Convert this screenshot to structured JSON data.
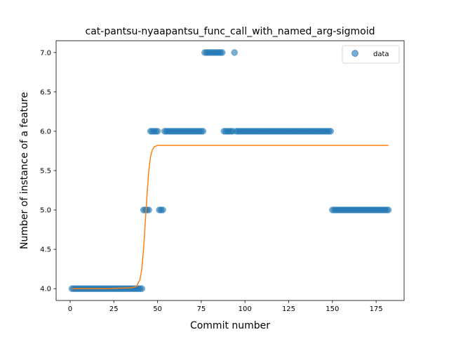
{
  "chart_data": {
    "type": "scatter",
    "title": "cat-pantsu-nyaapantsu_func_call_with_named_arg-sigmoid",
    "xlabel": "Commit number",
    "ylabel": "Number of instance of a feature",
    "xlim": [
      -8,
      191
    ],
    "ylim": [
      3.85,
      7.15
    ],
    "xticks": [
      0,
      25,
      50,
      75,
      100,
      125,
      150,
      175
    ],
    "yticks": [
      4.0,
      4.5,
      5.0,
      5.5,
      6.0,
      6.5,
      7.0
    ],
    "ytick_labels": [
      "4.0",
      "4.5",
      "5.0",
      "5.5",
      "6.0",
      "6.5",
      "7.0"
    ],
    "legend": {
      "placement": "top-right",
      "entries": [
        "data"
      ]
    },
    "colors": {
      "data": "#1f77b4",
      "fit": "#ff7f0e"
    },
    "segments": [
      {
        "x_start": 1,
        "x_end": 41,
        "y": 4
      },
      {
        "x_start": 42,
        "x_end": 45,
        "y": 5
      },
      {
        "x_start": 46,
        "x_end": 50,
        "y": 6
      },
      {
        "x_start": 51,
        "x_end": 53,
        "y": 5
      },
      {
        "x_start": 54,
        "x_end": 76,
        "y": 6
      },
      {
        "x_start": 77,
        "x_end": 87,
        "y": 7
      },
      {
        "x_start": 88,
        "x_end": 93,
        "y": 6
      },
      {
        "x_start": 94,
        "x_end": 94,
        "y": 7
      },
      {
        "x_start": 95,
        "x_end": 149,
        "y": 6
      },
      {
        "x_start": 150,
        "x_end": 182,
        "y": 5
      }
    ],
    "series": [
      {
        "name": "data",
        "kind": "scatter"
      },
      {
        "kind": "line",
        "x": [
          1,
          20,
          35,
          38,
          40,
          41,
          42,
          43,
          44,
          45,
          46,
          47,
          48,
          50,
          55,
          60,
          100,
          150,
          182
        ],
        "y": [
          4.0,
          4.0,
          4.01,
          4.03,
          4.12,
          4.25,
          4.5,
          4.85,
          5.2,
          5.5,
          5.68,
          5.76,
          5.8,
          5.82,
          5.82,
          5.82,
          5.82,
          5.82,
          5.82
        ]
      }
    ]
  }
}
